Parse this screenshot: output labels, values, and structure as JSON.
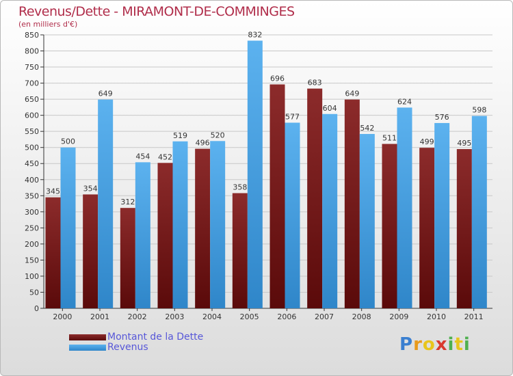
{
  "chart_data": {
    "type": "bar",
    "title": "Revenus/Dette - MIRAMONT-DE-COMMINGES",
    "subtitle": "(en milliers d'€)",
    "xlabel": "",
    "ylabel": "",
    "ylim": [
      0,
      850
    ],
    "yticks": [
      0,
      50,
      100,
      150,
      200,
      250,
      300,
      350,
      400,
      450,
      500,
      550,
      600,
      650,
      700,
      750,
      800,
      850
    ],
    "grid": true,
    "categories": [
      "2000",
      "2001",
      "2002",
      "2003",
      "2004",
      "2005",
      "2006",
      "2007",
      "2008",
      "2009",
      "2010",
      "2011"
    ],
    "series": [
      {
        "name": "Montant de la Dette",
        "color": "#7a1e1e",
        "values": [
          345,
          354,
          312,
          452,
          496,
          358,
          696,
          683,
          649,
          511,
          499,
          495
        ]
      },
      {
        "name": "Revenus",
        "color": "#4aa3e6",
        "values": [
          500,
          649,
          454,
          519,
          520,
          832,
          577,
          604,
          542,
          624,
          576,
          598
        ]
      }
    ],
    "legend_position": "bottom-left"
  },
  "logo": {
    "letters": [
      "P",
      "r",
      "o",
      "x",
      "i",
      "t",
      "i"
    ],
    "colors": [
      "#3a7fd0",
      "#e89a1c",
      "#e8c51c",
      "#d93a2e",
      "#4fb04f",
      "#e8c51c",
      "#4fb04f"
    ]
  }
}
